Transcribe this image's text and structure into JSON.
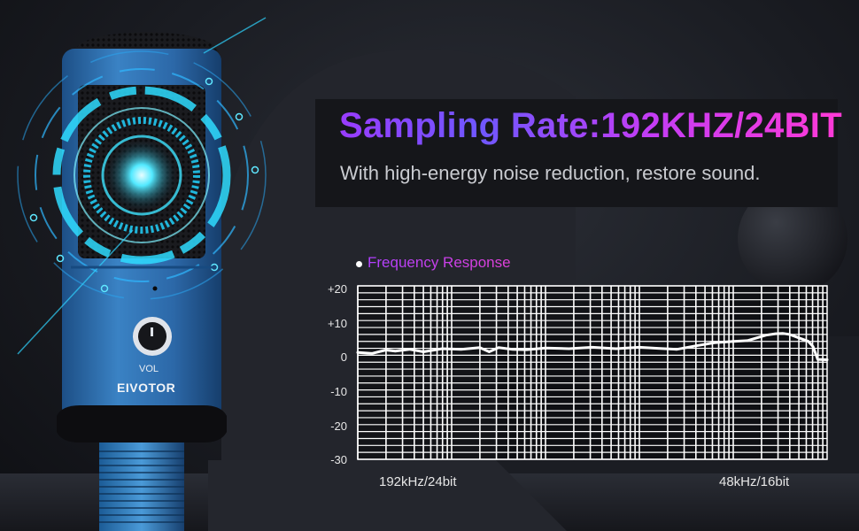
{
  "headline": "Sampling Rate:192KHZ/24BIT",
  "subline": "With high-energy noise reduction, restore sound.",
  "product": {
    "knob_label": "VOL",
    "brand": "EIVOTOR"
  },
  "colors": {
    "mic_body": "#2f6fae",
    "glow": "#2ee6ff",
    "headline_start": "#9a3cff",
    "headline_end": "#ff3ad6",
    "background": "#1a1c22"
  },
  "chart_data": {
    "type": "line",
    "legend": "Frequency Response",
    "y_ticks": [
      "+20",
      "+10",
      "0",
      "-10",
      "-20",
      "-30"
    ],
    "ylim": [
      -30,
      20
    ],
    "x_labels": [
      "192kHz/24bit",
      "48kHz/16bit"
    ],
    "grid": true,
    "series": [
      {
        "x": [
          0,
          3,
          6,
          8,
          11,
          14,
          18,
          22,
          26,
          28,
          30,
          33,
          36,
          40,
          45,
          50,
          55,
          60,
          64,
          68,
          72,
          76,
          80,
          83,
          85,
          87,
          89,
          90.5,
          92,
          94,
          96,
          97,
          98,
          100
        ],
        "values": [
          0.8,
          0.5,
          1.5,
          1.2,
          1.7,
          1.0,
          1.9,
          1.7,
          2.2,
          1.0,
          2.2,
          1.7,
          1.6,
          2.1,
          1.9,
          2.3,
          1.9,
          2.3,
          2.0,
          1.7,
          2.7,
          3.6,
          4.0,
          4.2,
          5.0,
          5.8,
          6.2,
          6.3,
          6.0,
          5.0,
          4.0,
          2.5,
          -1.2,
          -1.3
        ]
      }
    ]
  }
}
